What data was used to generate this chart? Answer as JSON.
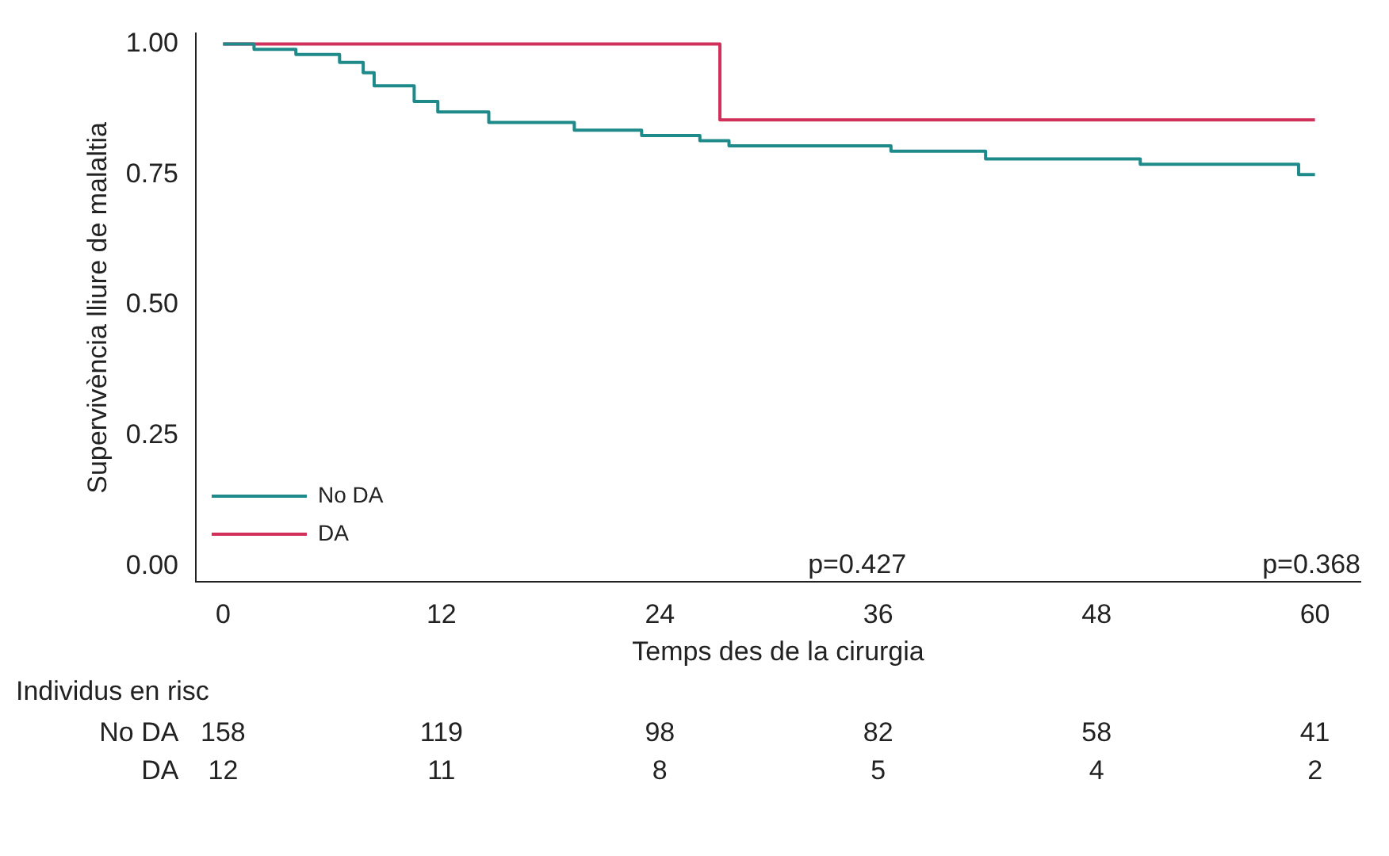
{
  "chart_data": {
    "type": "step",
    "xlabel": "Temps des de la cirurgia",
    "ylabel": "Supervivència lliure de malaltia",
    "series": [
      {
        "name": "No DA",
        "color": "#1f8a8a",
        "x": [
          0,
          1.7,
          4,
          6.4,
          7.7,
          8.3,
          10.5,
          11.8,
          14.6,
          19.3,
          23,
          26.2,
          27.8,
          36.7,
          41.9,
          50.4,
          59.1,
          60
        ],
        "values": [
          1,
          0.99,
          0.98,
          0.965,
          0.945,
          0.92,
          0.89,
          0.87,
          0.85,
          0.835,
          0.825,
          0.815,
          0.805,
          0.795,
          0.78,
          0.77,
          0.75,
          0.75
        ]
      },
      {
        "name": "DA",
        "color": "#d0305a",
        "x": [
          0,
          27.3,
          60
        ],
        "values": [
          1,
          0.855,
          0.855
        ]
      }
    ],
    "xlim": [
      -1.5,
      62.5
    ],
    "xticks": [
      0,
      12,
      24,
      36,
      48,
      60
    ],
    "ylim": [
      -0.03,
      1.02
    ],
    "yticks": [
      {
        "value": 0,
        "label": "0.00"
      },
      {
        "value": 0.25,
        "label": "0.25"
      },
      {
        "value": 0.5,
        "label": "0.50"
      },
      {
        "value": 0.75,
        "label": "0.75"
      },
      {
        "value": 1,
        "label": "1.00"
      }
    ],
    "grid": false,
    "legend": "bottom left",
    "marker": "none",
    "line_style": "solid",
    "annotations": [
      "p=0.427",
      "p=0.368",
      "Individus en risc",
      "158",
      "119",
      "98",
      "82",
      "58",
      "41",
      "12",
      "11",
      "8",
      "5",
      "4",
      "2"
    ]
  }
}
